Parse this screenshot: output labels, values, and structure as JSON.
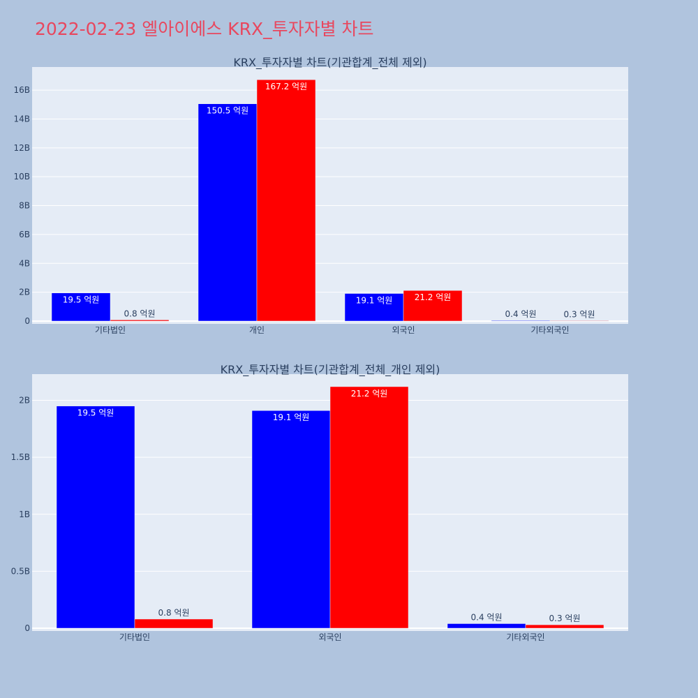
{
  "page": {
    "title": "2022-02-23 엘아이에스 KRX_투자자별 차트"
  },
  "chart_data": [
    {
      "type": "bar",
      "title": "KRX_투자자별 차트(기관합계_전체 제외)",
      "categories": [
        "기타법인",
        "개인",
        "외국인",
        "기타외국인"
      ],
      "series": [
        {
          "color": "#0000ff",
          "values": [
            1.95,
            15.05,
            1.91,
            0.04
          ],
          "labels": [
            "19.5 억원",
            "150.5 억원",
            "19.1 억원",
            "0.4 억원"
          ]
        },
        {
          "color": "#ff0000",
          "values": [
            0.08,
            16.72,
            2.12,
            0.03
          ],
          "labels": [
            "0.8 억원",
            "167.2 억원",
            "21.2 억원",
            "0.3 억원"
          ]
        }
      ],
      "ylim": [
        0,
        17.6
      ],
      "yticks": [
        0,
        2,
        4,
        6,
        8,
        10,
        12,
        14,
        16
      ],
      "yticklabels": [
        "0",
        "2B",
        "4B",
        "6B",
        "8B",
        "10B",
        "12B",
        "14B",
        "16B"
      ],
      "unit": "B",
      "grid": true,
      "xlabel": "",
      "ylabel": ""
    },
    {
      "type": "bar",
      "title": "KRX_투자자별 차트(기관합계_전체_개인 제외)",
      "categories": [
        "기타법인",
        "외국인",
        "기타외국인"
      ],
      "series": [
        {
          "color": "#0000ff",
          "values": [
            1.95,
            1.91,
            0.04
          ],
          "labels": [
            "19.5 억원",
            "19.1 억원",
            "0.4 억원"
          ]
        },
        {
          "color": "#ff0000",
          "values": [
            0.08,
            2.12,
            0.03
          ],
          "labels": [
            "0.8 억원",
            "21.2 억원",
            "0.3 억원"
          ]
        }
      ],
      "ylim": [
        0,
        2.23
      ],
      "yticks": [
        0,
        0.5,
        1,
        1.5,
        2
      ],
      "yticklabels": [
        "0",
        "0.5B",
        "1B",
        "1.5B",
        "2B"
      ],
      "unit": "B",
      "grid": true,
      "xlabel": "",
      "ylabel": ""
    }
  ]
}
